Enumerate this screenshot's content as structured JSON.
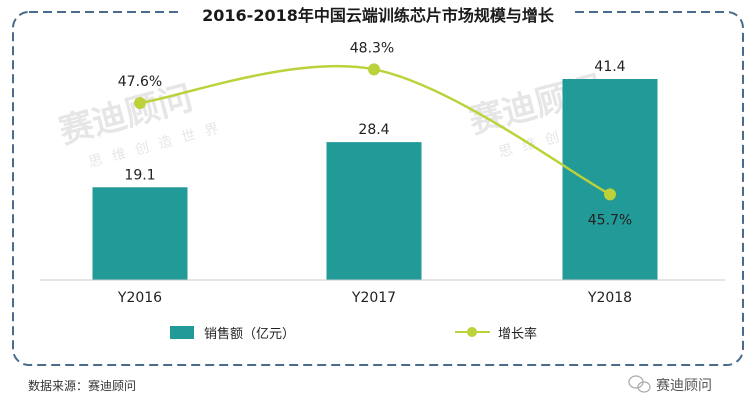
{
  "chart_data": {
    "type": "bar",
    "title": "2016-2018年中国云端训练芯片市场规模与增长",
    "categories": [
      "Y2016",
      "Y2017",
      "Y2018"
    ],
    "series": [
      {
        "name": "销售额（亿元）",
        "type": "bar",
        "values": [
          19.1,
          28.4,
          41.4
        ],
        "value_labels": [
          "19.1",
          "28.4",
          "41.4"
        ],
        "color": "#229a97"
      },
      {
        "name": "增长率",
        "type": "line",
        "values": [
          47.6,
          48.3,
          45.7
        ],
        "value_labels": [
          "47.6%",
          "48.3%",
          "45.7%"
        ],
        "color": "#bcd13a",
        "unit": "%"
      }
    ],
    "legend_position": "bottom",
    "grid": false
  },
  "watermark": {
    "brand": "赛迪顾问",
    "slogan": "思维创造世界"
  },
  "source_note": "数据来源：赛迪顾问",
  "wechat_badge": "赛迪顾问"
}
